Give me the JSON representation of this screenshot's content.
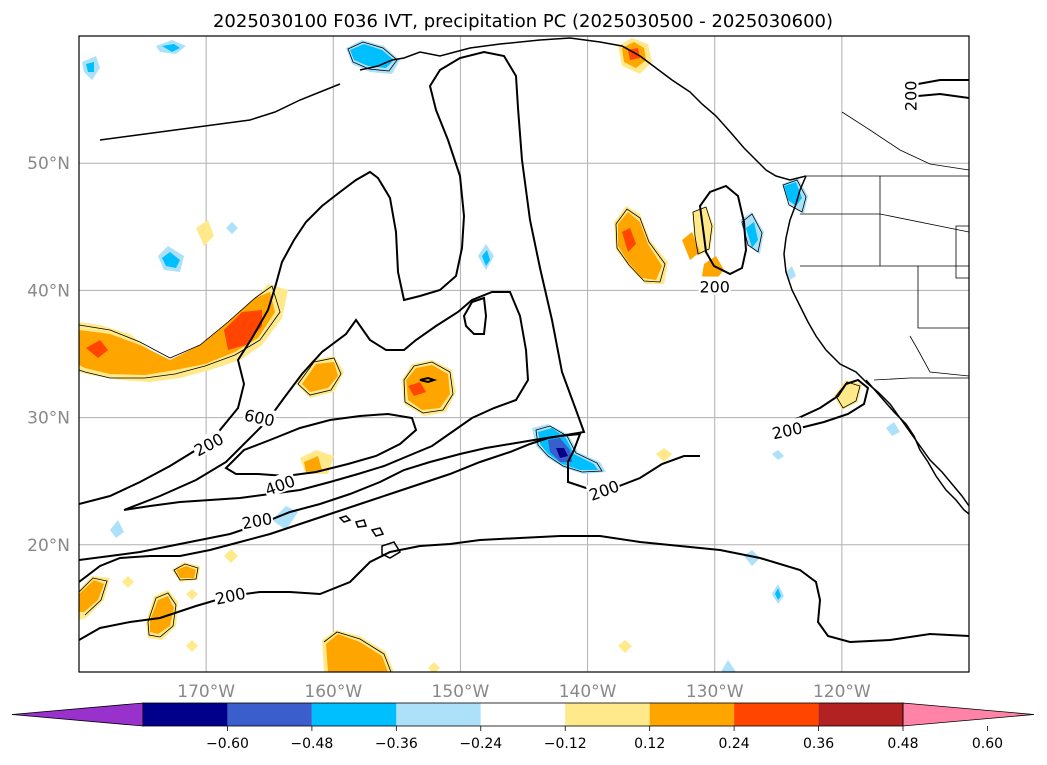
{
  "figure": {
    "title": "2025030100 F036 IVT, precipitation PC (2025030500 - 2025030600)"
  },
  "map": {
    "projection": "PlateCarree",
    "lon_range": [
      -180,
      -110
    ],
    "lat_range": [
      10,
      60
    ],
    "gridlines": true,
    "lat_ticks": [
      {
        "value": 50,
        "label": "50°N"
      },
      {
        "value": 40,
        "label": "40°N"
      },
      {
        "value": 30,
        "label": "30°N"
      },
      {
        "value": 20,
        "label": "20°N"
      }
    ],
    "lon_ticks": [
      {
        "value": -170,
        "label": "170°W"
      },
      {
        "value": -160,
        "label": "160°W"
      },
      {
        "value": -150,
        "label": "150°W"
      },
      {
        "value": -140,
        "label": "140°W"
      },
      {
        "value": -130,
        "label": "130°W"
      },
      {
        "value": -120,
        "label": "120°W"
      }
    ],
    "contour_labels": [
      {
        "text": "200",
        "lon": -169.8,
        "lat": 27.9,
        "rot": -28
      },
      {
        "text": "600",
        "lon": -165.8,
        "lat": 30.0,
        "rot": 12
      },
      {
        "text": "400",
        "lon": -164.2,
        "lat": 24.7,
        "rot": -20
      },
      {
        "text": "200",
        "lon": -166.0,
        "lat": 21.9,
        "rot": -10
      },
      {
        "text": "200",
        "lon": -168.1,
        "lat": 16.0,
        "rot": -12
      },
      {
        "text": "200",
        "lon": -138.7,
        "lat": 24.3,
        "rot": -20
      },
      {
        "text": "200",
        "lon": -130.0,
        "lat": 40.3,
        "rot": 0
      },
      {
        "text": "200",
        "lon": -124.3,
        "lat": 29.0,
        "rot": -12
      },
      {
        "text": "200",
        "lon": -114.6,
        "lat": 55.3,
        "rot": -90
      }
    ]
  },
  "colorbar": {
    "ticks": [
      "−0.60",
      "−0.48",
      "−0.36",
      "−0.24",
      "−0.12",
      "0.12",
      "0.24",
      "0.36",
      "0.48",
      "0.60"
    ],
    "colors": [
      "#9932CC",
      "#00008B",
      "#3A5FCD",
      "#00BFFF",
      "#ADE1FA",
      "#FFFFFF",
      "#FFE98A",
      "#FFA500",
      "#FF4500",
      "#B22222",
      "#FF83A6"
    ]
  }
}
